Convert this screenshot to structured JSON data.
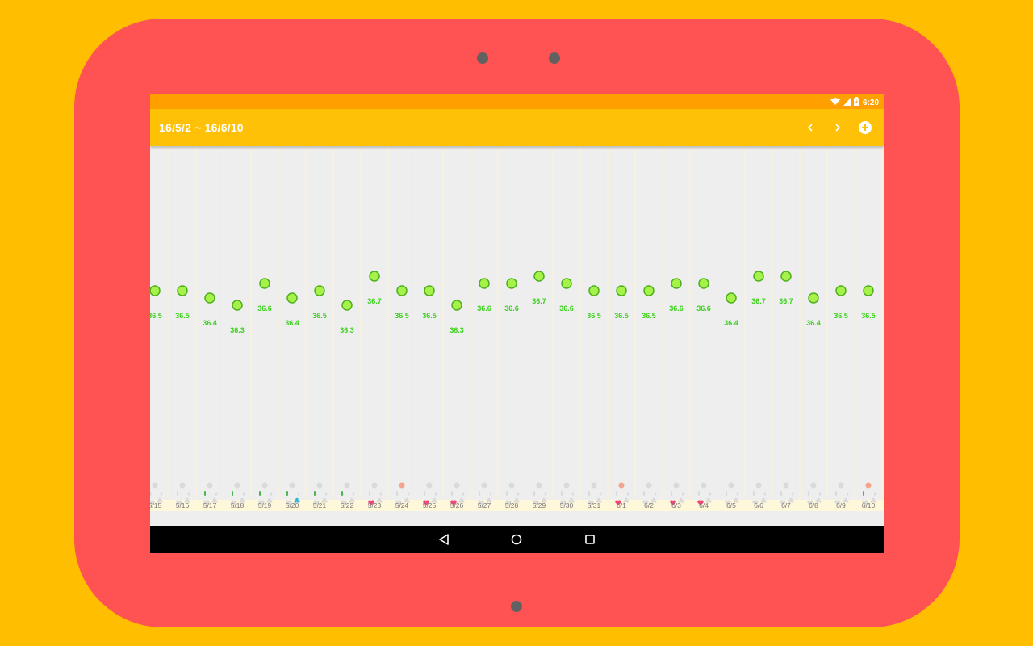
{
  "colors": {
    "background": "#FFBF00",
    "tablet_frame": "#FF5252",
    "status_bar": "#FFA000",
    "app_bar": "#FFC107",
    "chart_bg": "#EEEEEE",
    "point_fill": "#A6F24A",
    "point_stroke": "#4CAF1A",
    "value_label": "#3BD11B",
    "date_strip": "#FFF7DA",
    "heart_active": "#F0457F",
    "drop_red": "#F0506E",
    "drop_green": "#4DB34D",
    "club_blue": "#36B7D6",
    "dot_peach": "#F4A48C",
    "inactive_icon": "#DADADA"
  },
  "status_bar": {
    "icons": [
      "wifi-icon",
      "signal-icon",
      "battery-charging-icon"
    ],
    "time": "6:20"
  },
  "app_bar": {
    "title": "16/5/2 ~ 16/6/10",
    "icons": [
      "chevron-left-icon",
      "chevron-right-icon",
      "add-circle-icon"
    ]
  },
  "nav_bar": {
    "icons": [
      "back-icon",
      "home-icon",
      "recents-icon"
    ]
  },
  "chart_data": {
    "type": "scatter",
    "title": "",
    "xlabel": "",
    "ylabel": "",
    "grid": true,
    "categories": [
      "5/15",
      "5/16",
      "5/17",
      "5/18",
      "5/19",
      "5/20",
      "5/21",
      "5/22",
      "5/23",
      "5/24",
      "5/25",
      "5/26",
      "5/27",
      "5/28",
      "5/29",
      "5/30",
      "5/31",
      "6/1",
      "6/2",
      "6/3",
      "6/4",
      "6/5",
      "6/6",
      "6/7",
      "6/8",
      "6/9",
      "6/10"
    ],
    "values": [
      "36.5",
      "36.5",
      "36.4",
      "36.3",
      "36.6",
      "36.4",
      "36.5",
      "36.3",
      "36.7",
      "36.5",
      "36.5",
      "36.3",
      "36.6",
      "36.6",
      "36.7",
      "36.6",
      "36.5",
      "36.5",
      "36.5",
      "36.6",
      "36.6",
      "36.4",
      "36.7",
      "36.7",
      "36.4",
      "36.5",
      "36.5"
    ],
    "markers": {
      "peach_dot": [
        9,
        17,
        26
      ],
      "drop_red": [
        0,
        7
      ],
      "drop_green": [
        2,
        3,
        4,
        5,
        6,
        7,
        26
      ],
      "heart": [
        8,
        10,
        11,
        17,
        19,
        20
      ],
      "club": [
        5
      ]
    }
  }
}
